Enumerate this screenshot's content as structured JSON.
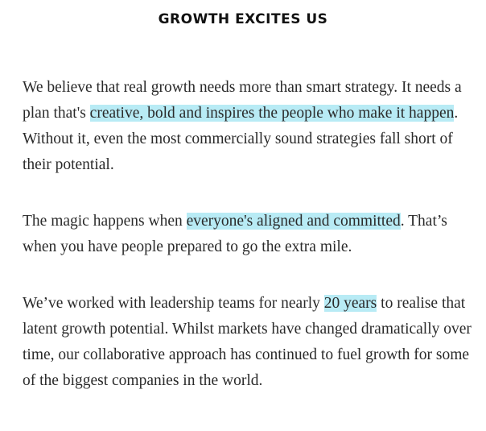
{
  "heading": "GROWTH EXCITES US",
  "paragraphs": [
    {
      "before": "We believe that real growth needs more than smart strategy. It needs a plan that's ",
      "highlight": "creative, bold and inspires the people who make it happen",
      "after": ". Without it, even the most commercially sound strategies fall short of their potential."
    },
    {
      "before": "The magic happens when ",
      "highlight": "everyone's aligned and committed",
      "after": ". That’s when you have people prepared to go the extra mile."
    },
    {
      "before": "We’ve worked with leadership teams for nearly ",
      "highlight": "20 years",
      "after": " to realise that latent growth potential. Whilst markets have changed dramatically over time, our collaborative approach has continued to fuel growth for some of the biggest companies in the world."
    }
  ],
  "colors": {
    "highlight": "#b8ebf5",
    "text": "#2a2a2a",
    "heading": "#111111"
  }
}
